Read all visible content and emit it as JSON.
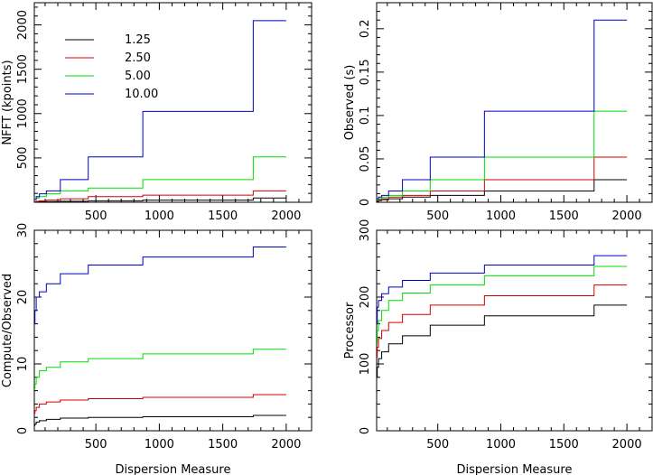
{
  "chart_data": [
    {
      "type": "line",
      "step": true,
      "ylabel": "NFFT (kpoints)",
      "xlabel": "",
      "xlim": [
        15,
        2200
      ],
      "ylim": [
        0,
        2250
      ],
      "xticks": [
        500,
        1000,
        1500,
        2000
      ],
      "yticks": [
        500,
        1000,
        1500,
        2000
      ],
      "ytick_rotated": true,
      "legend": {
        "placement": "top-left",
        "entries": [
          {
            "label": "1.25",
            "color": "#000000"
          },
          {
            "label": "2.50",
            "color": "#d00000"
          },
          {
            "label": "5.00",
            "color": "#00dd00"
          },
          {
            "label": "10.00",
            "color": "#0000c0"
          }
        ]
      },
      "x": [
        15,
        30,
        55,
        110,
        220,
        440,
        870,
        1740,
        2000
      ],
      "series": [
        {
          "color": "#000000",
          "values": [
            2,
            4,
            6,
            8,
            12,
            16,
            24,
            48,
            48
          ]
        },
        {
          "color": "#d00000",
          "values": [
            8,
            12,
            16,
            24,
            40,
            64,
            80,
            128,
            128
          ]
        },
        {
          "color": "#00dd00",
          "values": [
            32,
            48,
            64,
            96,
            128,
            160,
            256,
            512,
            512
          ]
        },
        {
          "color": "#0000c0",
          "values": [
            32,
            64,
            96,
            128,
            256,
            512,
            1024,
            2048,
            2048
          ]
        }
      ]
    },
    {
      "type": "line",
      "step": true,
      "ylabel": "Observed (s)",
      "xlabel": "",
      "xlim": [
        15,
        2200
      ],
      "ylim": [
        0,
        0.23
      ],
      "xticks": [
        500,
        1000,
        1500,
        2000
      ],
      "yticks": [
        0,
        0.05,
        0.1,
        0.15,
        0.2
      ],
      "ytick_labels": [
        "0",
        "0.05",
        "0.1",
        "0.15",
        "0.2"
      ],
      "ytick_rotated": true,
      "x": [
        15,
        30,
        55,
        110,
        220,
        440,
        870,
        1740,
        2000
      ],
      "series": [
        {
          "color": "#000000",
          "values": [
            0.001,
            0.002,
            0.003,
            0.004,
            0.006,
            0.008,
            0.013,
            0.026,
            0.026
          ]
        },
        {
          "color": "#d00000",
          "values": [
            0.002,
            0.003,
            0.004,
            0.006,
            0.008,
            0.013,
            0.026,
            0.052,
            0.052
          ]
        },
        {
          "color": "#00dd00",
          "values": [
            0.003,
            0.004,
            0.006,
            0.008,
            0.013,
            0.026,
            0.052,
            0.105,
            0.105
          ]
        },
        {
          "color": "#0000c0",
          "values": [
            0.004,
            0.006,
            0.008,
            0.013,
            0.026,
            0.052,
            0.105,
            0.21,
            0.21
          ]
        }
      ]
    },
    {
      "type": "line",
      "step": true,
      "ylabel": "Compute/Observed",
      "xlabel": "Dispersion Measure",
      "xlim": [
        15,
        2200
      ],
      "ylim": [
        0,
        30
      ],
      "xticks": [
        500,
        1000,
        1500,
        2000
      ],
      "yticks": [
        0,
        10,
        20,
        30
      ],
      "ytick_rotated": true,
      "x": [
        15,
        20,
        30,
        55,
        110,
        220,
        440,
        870,
        1740,
        2000
      ],
      "series": [
        {
          "color": "#000000",
          "values": [
            0.8,
            1.0,
            1.3,
            1.5,
            1.7,
            1.9,
            2.0,
            2.1,
            2.3,
            2.3
          ]
        },
        {
          "color": "#d00000",
          "values": [
            2.6,
            3.0,
            3.5,
            4.0,
            4.3,
            4.6,
            4.8,
            5.0,
            5.4,
            5.4
          ]
        },
        {
          "color": "#00dd00",
          "values": [
            6.3,
            7.0,
            8.0,
            9.0,
            9.5,
            10.3,
            10.8,
            11.5,
            12.2,
            12.2
          ]
        },
        {
          "color": "#0000c0",
          "values": [
            16.0,
            18.0,
            20.0,
            20.8,
            22.0,
            23.5,
            24.8,
            26.0,
            27.5,
            27.5
          ]
        }
      ]
    },
    {
      "type": "line",
      "step": true,
      "ylabel": "Processor",
      "xlabel": "Dispersion Measure",
      "xlim": [
        15,
        2200
      ],
      "ylim": [
        0,
        300
      ],
      "xticks": [
        500,
        1000,
        1500,
        2000
      ],
      "yticks": [
        0,
        100,
        200,
        300
      ],
      "ytick_rotated": true,
      "x": [
        15,
        20,
        30,
        55,
        110,
        220,
        440,
        870,
        1740,
        2000
      ],
      "series": [
        {
          "color": "#000000",
          "values": [
            80,
            95,
            108,
            118,
            130,
            142,
            158,
            172,
            188,
            188
          ]
        },
        {
          "color": "#d00000",
          "values": [
            110,
            125,
            138,
            150,
            162,
            174,
            188,
            202,
            218,
            218
          ]
        },
        {
          "color": "#00dd00",
          "values": [
            130,
            150,
            165,
            180,
            195,
            206,
            218,
            232,
            246,
            246
          ]
        },
        {
          "color": "#0000c0",
          "values": [
            160,
            185,
            195,
            205,
            215,
            225,
            236,
            248,
            262,
            262
          ]
        }
      ]
    }
  ]
}
